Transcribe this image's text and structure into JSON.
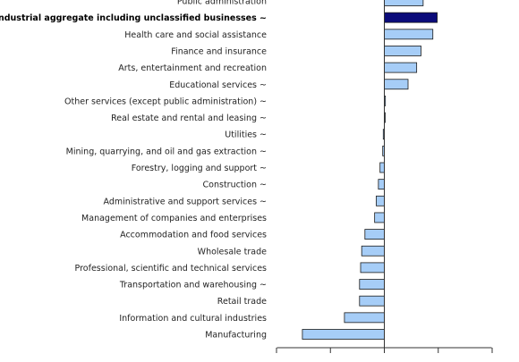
{
  "chart_data": {
    "type": "bar",
    "orientation": "horizontal",
    "categories": [
      "Public administration",
      "Industrial aggregate including unclassified businesses ~",
      "Health care and social assistance",
      "Finance and insurance",
      "Arts, entertainment and recreation",
      "Educational services ~",
      "Other services (except public administration) ~",
      "Real estate and rental and leasing ~",
      "Utilities ~",
      "Mining, quarrying, and oil and gas extraction ~",
      "Forestry, logging and support ~",
      "Construction ~",
      "Administrative and support services ~",
      "Management of companies and enterprises",
      "Accommodation and food services",
      "Wholesale trade",
      "Professional, scientific and technical services",
      "Transportation and warehousing ~",
      "Retail trade",
      "Information and cultural industries",
      "Manufacturing"
    ],
    "values": [
      3.6,
      4.9,
      4.5,
      3.4,
      3.0,
      2.2,
      0.1,
      0.05,
      -0.1,
      -0.15,
      -0.4,
      -0.55,
      -0.75,
      -0.9,
      -1.8,
      -2.1,
      -2.2,
      -2.3,
      -2.3,
      -3.7,
      -7.6
    ],
    "highlight_category": "Industrial aggregate including unclassified businesses ~",
    "xlim": [
      -10,
      10
    ],
    "grid": false,
    "colors": {
      "bar": "#a6cdf7",
      "highlight": "#0b0b7a",
      "outline": "#1a1a1a"
    }
  }
}
